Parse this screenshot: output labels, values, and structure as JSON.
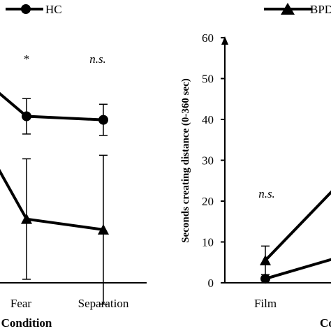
{
  "chart_data": [
    {
      "type": "line",
      "panel": "left",
      "categories": [
        "",
        "Fear",
        "Separation"
      ],
      "xlabel": "Condition",
      "ylabel": "",
      "legend": [
        {
          "name": "HC",
          "marker": "circle"
        }
      ],
      "series": [
        {
          "name": "HC",
          "marker": "circle",
          "values": [
            null,
            0.55,
            0.5
          ],
          "error": [
            null,
            0.25,
            0.22
          ]
        },
        {
          "name": "BPD",
          "marker": "triangle",
          "values": [
            null,
            -0.9,
            -1.05
          ],
          "error": [
            null,
            0.85,
            1.05
          ]
        }
      ],
      "ylim": [
        -1.8,
        1.6
      ],
      "segment_starts": {
        "HC": 1.0,
        "BPD": 0.05
      },
      "annotations": [
        {
          "category": "Fear",
          "text": "*",
          "italic": false
        },
        {
          "category": "Separation",
          "text": "n.s.",
          "italic": true
        }
      ]
    },
    {
      "type": "line",
      "panel": "right",
      "categories": [
        "Film",
        "",
        ""
      ],
      "xlabel": "Co",
      "ylabel": "Seconds creating distance (0-360 sec)",
      "legend": [
        {
          "name": "BPD",
          "marker": "triangle"
        }
      ],
      "yticks": [
        0,
        10,
        20,
        30,
        40,
        50,
        60
      ],
      "ylim": [
        0,
        60
      ],
      "series": [
        {
          "name": "BPD",
          "marker": "triangle",
          "values": [
            5.5,
            null,
            null
          ],
          "error": [
            3.5,
            null,
            null
          ],
          "segment_end": 25
        },
        {
          "name": "HC",
          "marker": "circle",
          "values": [
            1,
            null,
            null
          ],
          "error": [
            0,
            null,
            null
          ],
          "segment_end": 6.5
        }
      ],
      "annotations": [
        {
          "category": "Film",
          "text": "n.s.",
          "italic": true
        }
      ]
    }
  ],
  "colors": {
    "line": "#000000",
    "background": "#ffffff"
  }
}
